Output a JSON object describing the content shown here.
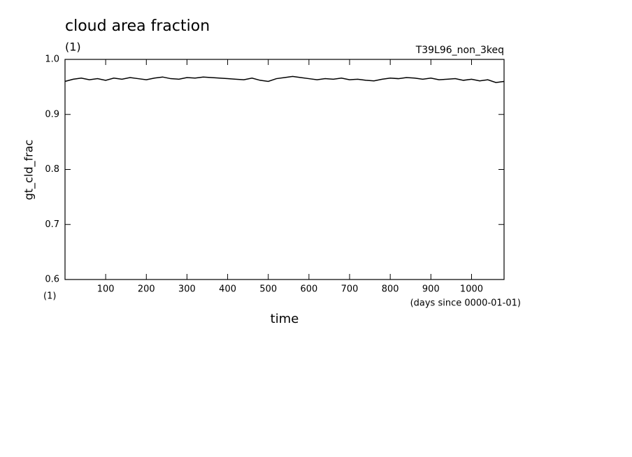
{
  "chart_data": {
    "type": "line",
    "title": "cloud area fraction",
    "units": "(1)",
    "experiment": "T39L96_non_3keq",
    "ylabel": "gt_cld_frac",
    "xlabel": "time",
    "x_units": "(1)",
    "x_since": "(days since 0000-01-01)",
    "x": [
      0,
      20,
      40,
      60,
      80,
      100,
      120,
      140,
      160,
      180,
      200,
      220,
      240,
      260,
      280,
      300,
      320,
      340,
      360,
      380,
      400,
      420,
      440,
      460,
      480,
      500,
      520,
      540,
      560,
      580,
      600,
      620,
      640,
      660,
      680,
      700,
      720,
      740,
      760,
      780,
      800,
      820,
      840,
      860,
      880,
      900,
      920,
      940,
      960,
      980,
      1000,
      1020,
      1040,
      1060,
      1080
    ],
    "series": [
      {
        "name": "gt_cld_frac",
        "color": "#000000",
        "values": [
          0.96,
          0.964,
          0.966,
          0.963,
          0.965,
          0.962,
          0.966,
          0.964,
          0.967,
          0.965,
          0.963,
          0.966,
          0.968,
          0.965,
          0.964,
          0.967,
          0.966,
          0.968,
          0.967,
          0.966,
          0.965,
          0.964,
          0.963,
          0.966,
          0.962,
          0.96,
          0.965,
          0.967,
          0.969,
          0.967,
          0.965,
          0.963,
          0.965,
          0.964,
          0.966,
          0.963,
          0.964,
          0.962,
          0.961,
          0.964,
          0.966,
          0.965,
          0.967,
          0.966,
          0.964,
          0.966,
          0.963,
          0.964,
          0.965,
          0.962,
          0.964,
          0.961,
          0.963,
          0.958,
          0.96
        ]
      }
    ],
    "xlim": [
      0,
      1080
    ],
    "ylim": [
      0.6,
      1
    ],
    "xticks": [
      100,
      200,
      300,
      400,
      500,
      600,
      700,
      800,
      900,
      1000
    ],
    "yticks": [
      0.6,
      0.7,
      0.8,
      0.9,
      {
        "value": 1,
        "label": "1.0"
      }
    ]
  }
}
